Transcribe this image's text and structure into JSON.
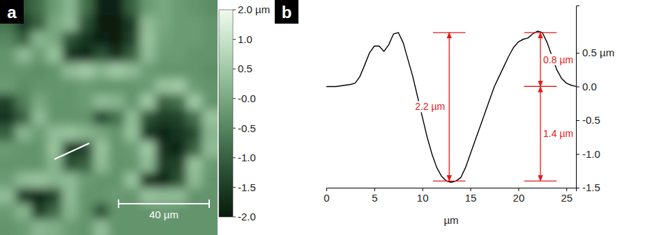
{
  "chart_data": [
    {
      "type": "heatmap",
      "panel": "a",
      "xlim": [
        0,
        96
      ],
      "ylim": [
        0,
        104
      ],
      "cells": [
        [
          -0.3,
          -1.2,
          -0.8,
          -0.2,
          0.2,
          -0.8,
          -1.9,
          -1.9,
          -1.0,
          -0.2,
          0.0,
          -0.2,
          -0.3,
          -0.4
        ],
        [
          -0.8,
          -1.6,
          -1.0,
          0.0,
          0.3,
          -1.2,
          -2.0,
          -2.0,
          -1.5,
          0.3,
          0.0,
          -0.2,
          -0.2,
          -0.3
        ],
        [
          -0.5,
          -1.0,
          0.2,
          0.0,
          -1.2,
          -1.6,
          -1.9,
          -2.0,
          -1.4,
          0.4,
          -0.1,
          -0.2,
          -0.2,
          -0.3
        ],
        [
          -0.3,
          0.3,
          -0.2,
          0.4,
          -1.6,
          -1.8,
          -1.2,
          -1.7,
          -1.0,
          0.3,
          -0.2,
          -0.2,
          -0.3,
          -0.3
        ],
        [
          -0.3,
          -0.3,
          -0.4,
          -0.3,
          0.3,
          0.5,
          0.2,
          0.5,
          0.3,
          -0.2,
          -0.3,
          -0.3,
          -0.3,
          -0.4
        ],
        [
          -0.2,
          -0.4,
          -0.3,
          -0.3,
          -0.3,
          -0.2,
          -0.3,
          -0.3,
          -0.3,
          -0.2,
          0.4,
          0.5,
          -0.2,
          -0.3
        ],
        [
          -1.4,
          -0.6,
          0.0,
          -0.3,
          -0.3,
          -0.2,
          0.3,
          0.2,
          -0.3,
          0.5,
          -1.0,
          -0.8,
          0.5,
          -0.3
        ],
        [
          -1.6,
          -1.0,
          0.3,
          -0.3,
          -0.3,
          -0.3,
          -1.3,
          -0.8,
          0.3,
          -1.2,
          -1.5,
          -1.4,
          -0.8,
          0.4
        ],
        [
          -1.0,
          0.2,
          -0.2,
          0.3,
          0.4,
          0.2,
          0.0,
          -0.3,
          0.4,
          -1.6,
          -1.8,
          -1.6,
          -1.3,
          0.2
        ],
        [
          -0.2,
          -0.3,
          -0.3,
          0.4,
          -1.6,
          -1.4,
          0.4,
          -0.3,
          -0.2,
          0.5,
          -1.7,
          -1.8,
          -1.0,
          0.3
        ],
        [
          -0.3,
          -0.3,
          -0.3,
          0.2,
          -1.2,
          -1.0,
          0.3,
          -0.3,
          -0.3,
          0.3,
          -1.5,
          -1.4,
          0.4,
          -0.2
        ],
        [
          -0.2,
          0.3,
          0.4,
          0.2,
          0.3,
          -0.2,
          -0.3,
          -0.3,
          0.4,
          -1.7,
          -1.9,
          -1.2,
          0.3,
          -0.3
        ],
        [
          0.3,
          -1.6,
          -1.9,
          -1.4,
          0.3,
          -0.3,
          -0.3,
          -0.2,
          -0.3,
          0.4,
          0.3,
          0.3,
          -0.3,
          -0.3
        ],
        [
          -0.2,
          0.2,
          -1.5,
          -0.9,
          0.2,
          -0.3,
          -1.2,
          -0.3,
          -0.3,
          -0.3,
          -0.2,
          -0.3,
          -0.3,
          -0.3
        ],
        [
          -0.3,
          -0.2,
          0.2,
          0.1,
          -0.2,
          -0.3,
          0.3,
          -0.3,
          -0.3,
          -0.3,
          -0.3,
          -0.3,
          -0.3,
          -0.3
        ]
      ],
      "colorbar_range": [
        -2,
        2
      ],
      "colorbar_ticks": [
        {
          "value": 2,
          "label": "2.0 µm"
        },
        {
          "value": 1,
          "label": "1.0"
        },
        0.5,
        {
          "value": 0,
          "label": "-0.0"
        },
        -0.5,
        {
          "value": -1,
          "label": "-1.0"
        },
        -1.5,
        {
          "value": -2,
          "label": "-2.0"
        }
      ],
      "scale_bar": {
        "label": "40 µm",
        "length": 40
      }
    },
    {
      "type": "line",
      "panel": "b",
      "xlabel": "µm",
      "x": [
        0,
        1,
        2,
        2.5,
        3,
        3.5,
        4,
        4.5,
        5,
        5.5,
        6,
        6.5,
        7,
        7.5,
        8,
        8.5,
        9,
        9.5,
        10,
        10.5,
        11,
        11.5,
        12,
        12.5,
        13,
        13.5,
        14,
        14.5,
        15,
        15.5,
        16,
        16.5,
        17,
        17.5,
        18,
        18.5,
        19,
        19.5,
        20,
        20.5,
        21,
        21.5,
        22,
        22.5,
        23,
        23.5,
        24,
        24.5,
        25,
        25.5,
        26
      ],
      "series": [
        {
          "color": "#000000",
          "values": [
            0.0,
            0.0,
            0.02,
            0.03,
            0.05,
            0.15,
            0.32,
            0.5,
            0.6,
            0.6,
            0.52,
            0.62,
            0.78,
            0.8,
            0.65,
            0.4,
            0.15,
            -0.15,
            -0.45,
            -0.75,
            -1.0,
            -1.2,
            -1.33,
            -1.4,
            -1.42,
            -1.4,
            -1.35,
            -1.2,
            -1.0,
            -0.8,
            -0.6,
            -0.4,
            -0.2,
            0.0,
            0.15,
            0.3,
            0.45,
            0.58,
            0.66,
            0.7,
            0.72,
            0.78,
            0.82,
            0.8,
            0.65,
            0.45,
            0.25,
            0.12,
            0.05,
            0.02,
            0.0
          ]
        }
      ],
      "xlim": [
        0,
        26
      ],
      "ylim": [
        -1.5,
        1.2
      ],
      "xticks": [
        0,
        5,
        10,
        15,
        20,
        25
      ],
      "yticks": [
        {
          "value": 0.5,
          "label": "0.5 µm"
        },
        {
          "value": 0,
          "label": "0.0"
        },
        -0.5,
        {
          "value": -1,
          "label": "-1.0"
        },
        -1.5
      ],
      "annotations": [
        {
          "label": "2.2 µm",
          "x": 12.8,
          "y_from": 0.8,
          "y_to": -1.4,
          "color": "#e41a1c"
        },
        {
          "label": "0.8 µm",
          "x": 22.3,
          "y_from": 0.8,
          "y_to": 0,
          "color": "#e41a1c"
        },
        {
          "label": "1.4 µm",
          "x": 22.3,
          "y_from": 0,
          "y_to": -1.4,
          "color": "#e41a1c"
        }
      ]
    }
  ]
}
